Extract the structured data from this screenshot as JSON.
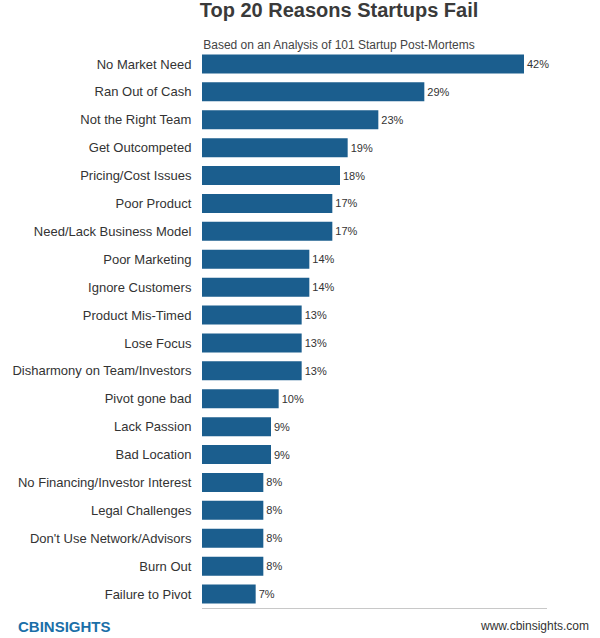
{
  "chart_data": {
    "type": "bar",
    "orientation": "horizontal",
    "title": "Top 20 Reasons Startups Fail",
    "subtitle": "Based on an Analysis of 101 Startup Post-Mortems",
    "categories": [
      "No Market Need",
      "Ran Out of Cash",
      "Not the Right Team",
      "Get Outcompeted",
      "Pricing/Cost Issues",
      "Poor Product",
      "Need/Lack Business Model",
      "Poor Marketing",
      "Ignore Customers",
      "Product Mis-Timed",
      "Lose Focus",
      "Disharmony on Team/Investors",
      "Pivot gone bad",
      "Lack Passion",
      "Bad Location",
      "No Financing/Investor Interest",
      "Legal Challenges",
      "Don't Use Network/Advisors",
      "Burn Out",
      "Failure to Pivot"
    ],
    "values": [
      42,
      29,
      23,
      19,
      18,
      17,
      17,
      14,
      14,
      13,
      13,
      13,
      10,
      9,
      9,
      8,
      8,
      8,
      8,
      7
    ],
    "value_labels": [
      "42%",
      "29%",
      "23%",
      "19%",
      "18%",
      "17%",
      "17%",
      "14%",
      "14%",
      "13%",
      "13%",
      "13%",
      "10%",
      "9%",
      "9%",
      "8%",
      "8%",
      "8%",
      "8%",
      "7%"
    ],
    "color": "#1b5e8e",
    "xlim": [
      0,
      45
    ],
    "xticks": [],
    "grid": false,
    "data_labels": true,
    "tick_labels": "y",
    "annotations": [
      "CBINSIGHTS",
      "www.cbinsights.com"
    ]
  }
}
